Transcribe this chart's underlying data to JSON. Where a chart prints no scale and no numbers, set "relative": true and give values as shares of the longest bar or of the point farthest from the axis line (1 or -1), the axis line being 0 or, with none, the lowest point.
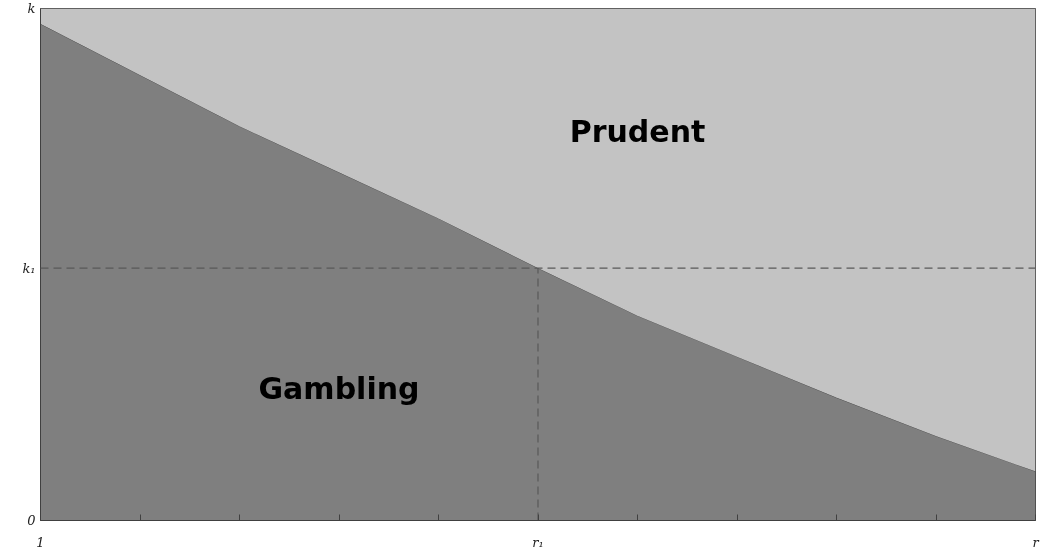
{
  "chart_data": {
    "type": "area",
    "stacked": true,
    "relative": true,
    "categories": [
      "1",
      null,
      null,
      null,
      null,
      "r₁",
      null,
      null,
      null,
      null,
      "r"
    ],
    "series": [
      {
        "name": "Gambling",
        "color": "#7f7f7f",
        "values": [
          0.97,
          0.87,
          0.77,
          0.68,
          0.59,
          0.493,
          0.4,
          0.32,
          0.24,
          0.165,
          0.096
        ]
      },
      {
        "name": "Prudent",
        "color": "#c3c3c3",
        "values": [
          0.03,
          0.13,
          0.23,
          0.32,
          0.41,
          0.507,
          0.6,
          0.68,
          0.76,
          0.835,
          0.904
        ]
      }
    ],
    "ref_lines": [
      {
        "axis": "y",
        "value": 0.493,
        "label": "k₁",
        "color": "#595959",
        "line_style": "dashed"
      },
      {
        "axis": "x",
        "value": "r₁",
        "color": "#595959",
        "line_style": "dashed"
      }
    ],
    "annotations": [
      "0",
      "k"
    ],
    "grid": false
  }
}
